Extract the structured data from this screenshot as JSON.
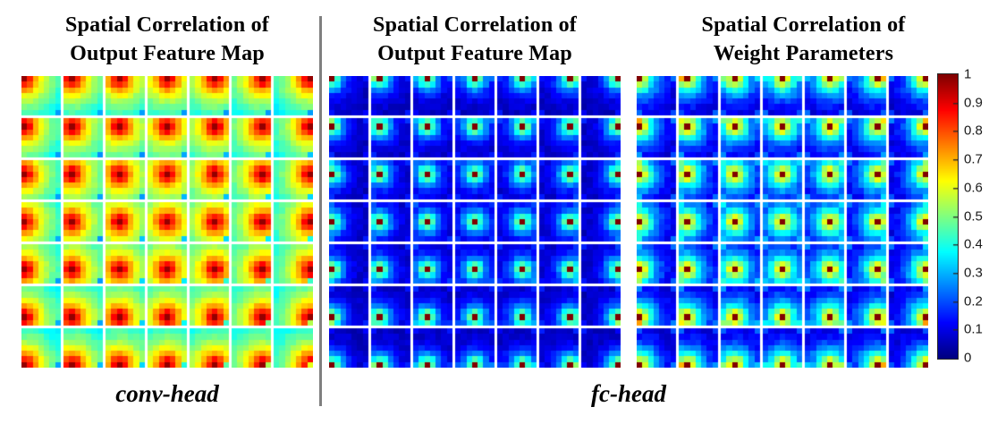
{
  "figure": {
    "panels": [
      {
        "title_line1": "Spatial Correlation of",
        "title_line2": "Output Feature Map"
      },
      {
        "title_line1": "Spatial Correlation of",
        "title_line2": "Output Feature Map"
      },
      {
        "title_line1": "Spatial Correlation of",
        "title_line2": "Weight Parameters"
      }
    ],
    "group_labels": [
      {
        "label": "conv-head"
      },
      {
        "label": "fc-head"
      }
    ]
  },
  "chart_data": {
    "type": "heatmap",
    "colormap": "jet",
    "value_range": [
      0,
      1
    ],
    "colorbar_tick_labels": [
      "1",
      "0.9",
      "0.8",
      "0.7",
      "0.6",
      "0.5",
      "0.4",
      "0.3",
      "0.2",
      "0.1",
      "0"
    ],
    "grid": {
      "tile_rows": 7,
      "tile_cols": 7,
      "cells_per_tile": 7
    },
    "generation_rule": "Each panel is a 7x7 montage of 7x7 correlation maps. Tile (I,J) shows correlation of reference position (I,J) with every position (r,c): value = profile_by_distance evaluated at the Euclidean distance between (r,c) and (I,J), linearly interpolated; peak value 1 at the reference position.",
    "panels": [
      {
        "name": "conv-head output feature map correlation",
        "group": "conv-head",
        "profile_by_distance": [
          0.98,
          0.86,
          0.72,
          0.62,
          0.55,
          0.49,
          0.45,
          0.4,
          0.37,
          0.35
        ],
        "corner_cell_factor": 0.62,
        "corner_bump": 0,
        "noise_amplitude": 0.02
      },
      {
        "name": "fc-head output feature map correlation",
        "group": "fc-head",
        "profile_by_distance": [
          1.0,
          0.44,
          0.26,
          0.16,
          0.11,
          0.08,
          0.07,
          0.06,
          0.06,
          0.06
        ],
        "corner_cell_factor": 1,
        "corner_bump": 0.07,
        "noise_amplitude": 0.025
      },
      {
        "name": "fc-head weight parameters correlation",
        "group": "fc-head",
        "profile_by_distance": [
          1.0,
          0.58,
          0.4,
          0.28,
          0.2,
          0.14,
          0.11,
          0.09,
          0.08,
          0.08
        ],
        "corner_cell_factor": 1,
        "corner_bump": 0.12,
        "noise_amplitude": 0.03
      }
    ]
  }
}
